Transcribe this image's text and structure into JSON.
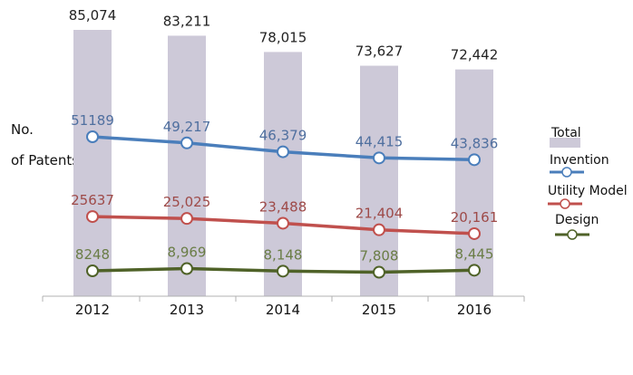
{
  "chart_data": {
    "type": "bar+line",
    "ylabel": [
      "No.",
      "of Patents"
    ],
    "categories": [
      "2012",
      "2013",
      "2014",
      "2015",
      "2016"
    ],
    "bars": {
      "name": "Total",
      "color": "#cdc9d8",
      "values": [
        85074,
        83211,
        78015,
        73627,
        72442
      ],
      "labels": [
        "85,074",
        "83,211",
        "78,015",
        "73,627",
        "72,442"
      ]
    },
    "series": [
      {
        "name": "Invention",
        "color": "#4a7ebb",
        "labelColor": "#4f6f9f",
        "values": [
          51189,
          49217,
          46379,
          44415,
          43836
        ],
        "labels": [
          "51189",
          "49,217",
          "46,379",
          "44,415",
          "43,836"
        ]
      },
      {
        "name": "Utility Model",
        "color": "#c0504d",
        "labelColor": "#9e4a48",
        "values": [
          25637,
          25025,
          23488,
          21404,
          20161
        ],
        "labels": [
          "25637",
          "25,025",
          "23,488",
          "21,404",
          "20,161"
        ]
      },
      {
        "name": "Design",
        "color": "#4f6228",
        "labelColor": "#6a7d46",
        "values": [
          8248,
          8969,
          8148,
          7808,
          8445
        ],
        "labels": [
          "8248",
          "8,969",
          "8,148",
          "7,808",
          "8,445"
        ]
      }
    ],
    "legend_position": "right"
  }
}
